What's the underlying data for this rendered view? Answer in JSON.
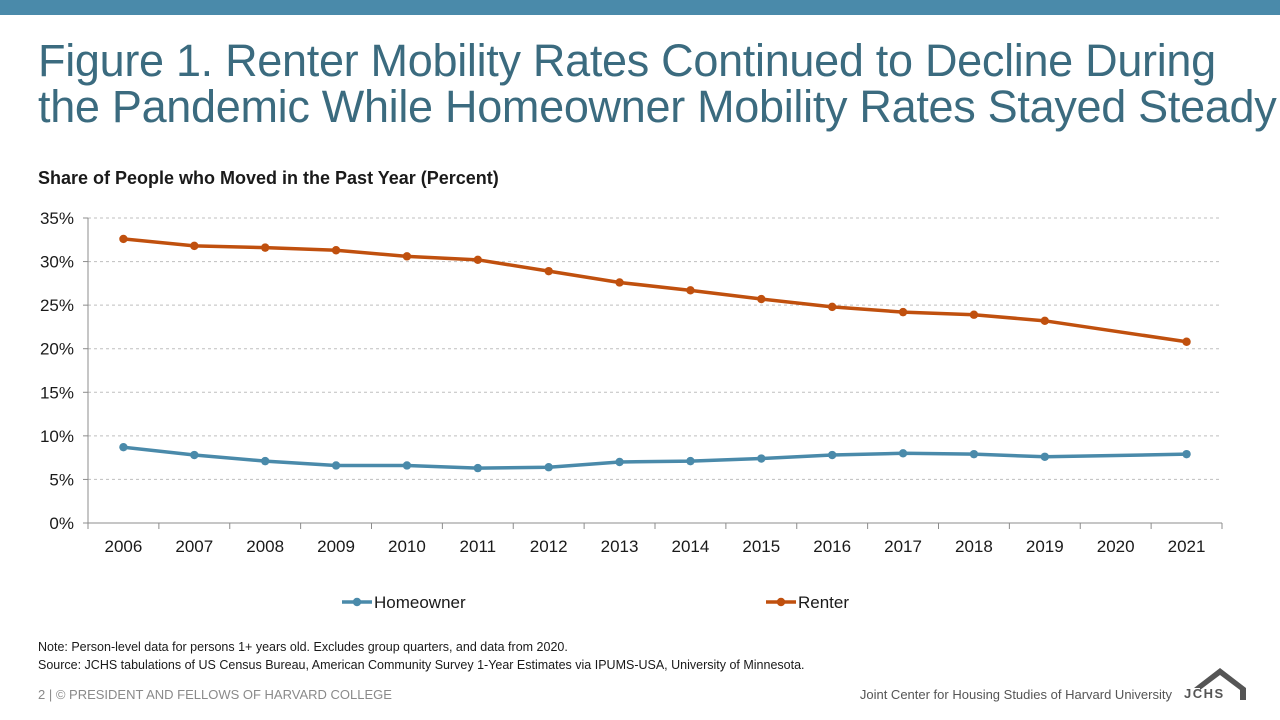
{
  "slide": {
    "title_line1": "Figure 1. Renter Mobility Rates Continued to Decline During",
    "title_line2": "the Pandemic While Homeowner Mobility Rates Stayed Steady",
    "note_line1": "Note: Person-level data for persons 1+ years old. Excludes group quarters, and data from 2020.",
    "note_line2": "Source: JCHS tabulations of US Census Bureau, American Community Survey 1-Year Estimates via IPUMS-USA,  University of Minnesota.",
    "footer_left": "2 | © PRESIDENT AND FELLOWS OF HARVARD COLLEGE",
    "footer_right": "Joint Center for Housing Studies of Harvard University",
    "logo_text": "JCHS"
  },
  "colors": {
    "top_bar": "#4a8aaa",
    "title": "#3b6b7f",
    "homeowner": "#4a8aaa",
    "renter": "#c0500e",
    "grid": "#bfbfbf"
  },
  "chart_data": {
    "type": "line",
    "title": "Share of People who Moved in the Past Year (Percent)",
    "xlabel": "",
    "ylabel": "",
    "ylim": [
      0,
      35
    ],
    "yticks": [
      0,
      5,
      10,
      15,
      20,
      25,
      30,
      35
    ],
    "ytick_labels": [
      "0%",
      "5%",
      "10%",
      "15%",
      "20%",
      "25%",
      "30%",
      "35%"
    ],
    "categories": [
      "2006",
      "2007",
      "2008",
      "2009",
      "2010",
      "2011",
      "2012",
      "2013",
      "2014",
      "2015",
      "2016",
      "2017",
      "2018",
      "2019",
      "2020",
      "2021"
    ],
    "grid": true,
    "legend_position": "bottom",
    "series": [
      {
        "name": "Homeowner",
        "color": "#4a8aaa",
        "values": [
          8.7,
          7.8,
          7.1,
          6.6,
          6.6,
          6.3,
          6.4,
          7.0,
          7.1,
          7.4,
          7.8,
          8.0,
          7.9,
          7.6,
          null,
          7.9
        ]
      },
      {
        "name": "Renter",
        "color": "#c0500e",
        "values": [
          32.6,
          31.8,
          31.6,
          31.3,
          30.6,
          30.2,
          28.9,
          27.6,
          26.7,
          25.7,
          24.8,
          24.2,
          23.9,
          23.2,
          null,
          20.8
        ]
      }
    ]
  }
}
